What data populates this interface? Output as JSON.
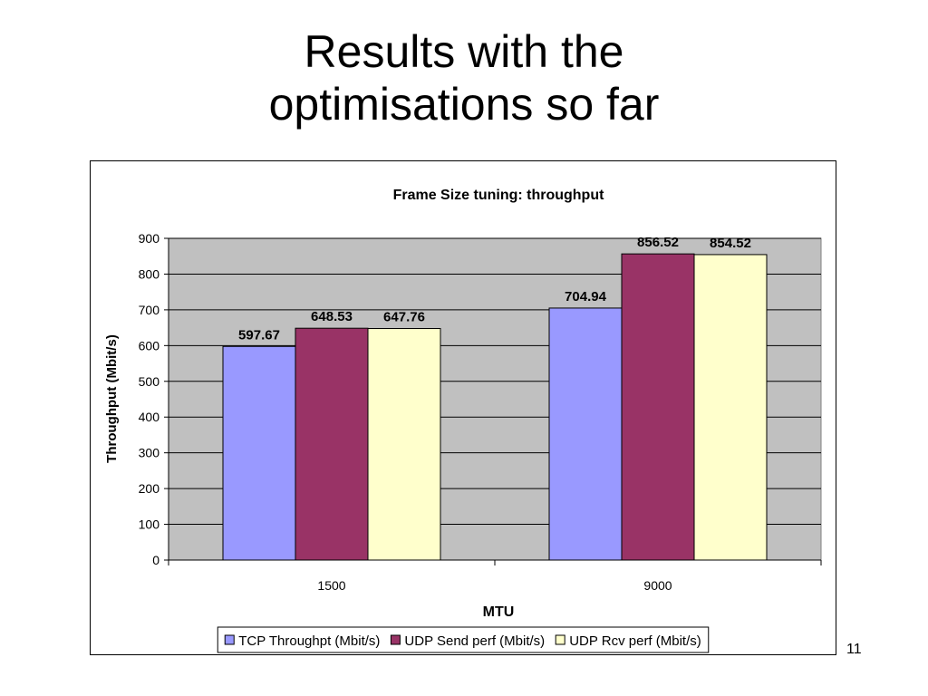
{
  "slide": {
    "title_line1": "Results with the",
    "title_line2": "optimisations so far",
    "page_number": "11"
  },
  "chart_data": {
    "type": "bar",
    "title": "Frame Size tuning: throughput",
    "xlabel": "MTU",
    "ylabel": "Throughput (Mbit/s)",
    "ylim": [
      0,
      900
    ],
    "yticks": [
      "0",
      "100",
      "200",
      "300",
      "400",
      "500",
      "600",
      "700",
      "800",
      "900"
    ],
    "categories": [
      "1500",
      "9000"
    ],
    "series": [
      {
        "name": "TCP Throughpt (Mbit/s)",
        "values": [
          597.67,
          704.94
        ],
        "labels": [
          "597.67",
          "704.94"
        ],
        "color": "#9999ff"
      },
      {
        "name": "UDP Send perf (Mbit/s)",
        "values": [
          648.53,
          856.52
        ],
        "labels": [
          "648.53",
          "856.52"
        ],
        "color": "#993366"
      },
      {
        "name": "UDP Rcv perf (Mbit/s)",
        "values": [
          647.76,
          854.52
        ],
        "labels": [
          "647.76",
          "854.52"
        ],
        "color": "#ffffcc"
      }
    ],
    "plot_background": "#c0c0c0",
    "grid": true,
    "legend_position": "bottom"
  }
}
